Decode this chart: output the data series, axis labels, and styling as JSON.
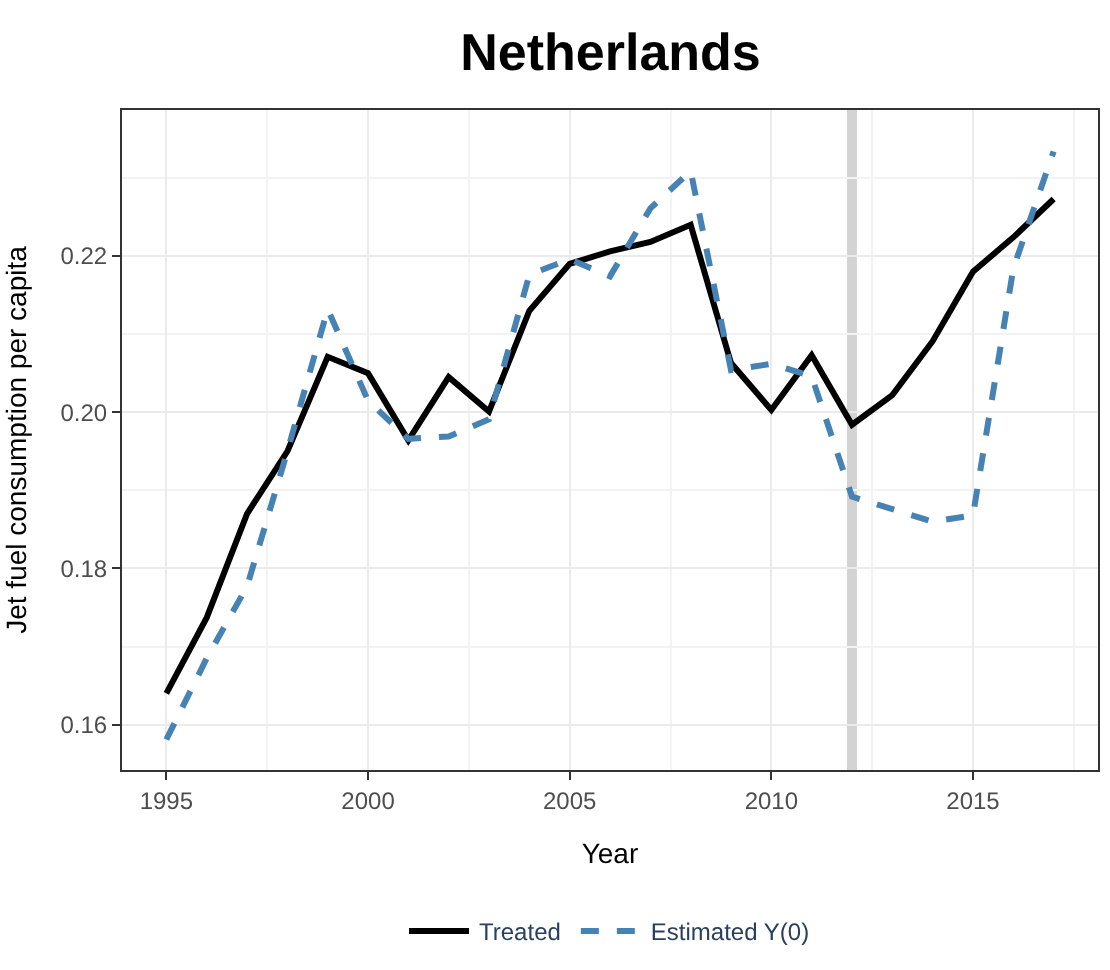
{
  "chart_data": {
    "type": "line",
    "title": "Netherlands",
    "xlabel": "Year",
    "ylabel": "Jet fuel consumption per capita",
    "x": [
      1995,
      1996,
      1997,
      1998,
      1999,
      2000,
      2001,
      2002,
      2003,
      2004,
      2005,
      2006,
      2007,
      2008,
      2009,
      2010,
      2011,
      2012,
      2013,
      2014,
      2015,
      2016,
      2017
    ],
    "series": [
      {
        "name": "Treated",
        "color": "#000000",
        "line_style": "solid",
        "values": [
          0.164,
          0.1737,
          0.187,
          0.195,
          0.2071,
          0.205,
          0.1964,
          0.2045,
          0.2001,
          0.213,
          0.219,
          0.2206,
          0.2218,
          0.224,
          0.2063,
          0.2003,
          0.2073,
          0.1984,
          0.2022,
          0.2091,
          0.218,
          0.2224,
          0.2273
        ]
      },
      {
        "name": "Estimated Y(0)",
        "color": "#4682b4",
        "line_style": "dashed",
        "values": [
          0.1581,
          0.1685,
          0.1777,
          0.195,
          0.2132,
          0.2015,
          0.1966,
          0.1969,
          0.1991,
          0.2176,
          0.2196,
          0.2174,
          0.2261,
          0.2309,
          0.2054,
          0.2062,
          0.2046,
          0.1892,
          0.1876,
          0.186,
          0.1868,
          0.2184,
          0.2334
        ]
      }
    ],
    "xlim": [
      1993.9,
      2018.1
    ],
    "xticks": [
      1995,
      2000,
      2005,
      2010,
      2015
    ],
    "ylim": [
      0.1542,
      0.2387
    ],
    "yticks": [
      {
        "value": 0.16,
        "label": "0.16"
      },
      {
        "value": 0.18,
        "label": "0.18"
      },
      {
        "value": 0.2,
        "label": "0.20"
      },
      {
        "value": 0.22,
        "label": "0.22"
      }
    ],
    "ref_lines": [
      {
        "axis": "x",
        "value": 2012,
        "label": null,
        "color": "#d3d3d3"
      }
    ],
    "grid": true,
    "legend": "bottom",
    "marker": "none"
  }
}
